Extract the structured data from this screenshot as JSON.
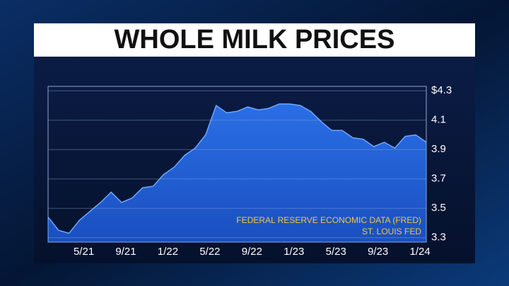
{
  "chart_data": {
    "type": "area",
    "title": "WHOLE MILK PRICES",
    "source": [
      "FEDERAL RESERVE ECONOMIC DATA (FRED)",
      "ST. LOUIS FED"
    ],
    "categories": [
      null,
      null,
      null,
      "5/21",
      null,
      null,
      null,
      "9/21",
      null,
      null,
      null,
      "1/22",
      null,
      null,
      null,
      "5/22",
      null,
      null,
      null,
      "9/22",
      null,
      null,
      null,
      "1/23",
      null,
      null,
      null,
      "5/23",
      null,
      null,
      null,
      "9/23",
      null,
      null,
      null,
      "1/24",
      null
    ],
    "values": [
      3.44,
      3.35,
      3.33,
      3.42,
      3.48,
      3.54,
      3.61,
      3.54,
      3.57,
      3.64,
      3.65,
      3.73,
      3.78,
      3.86,
      3.91,
      4.0,
      4.2,
      4.15,
      4.16,
      4.19,
      4.17,
      4.18,
      4.21,
      4.21,
      4.2,
      4.16,
      4.09,
      4.03,
      4.03,
      3.98,
      3.97,
      3.92,
      3.95,
      3.91,
      3.99,
      4.0,
      3.95
    ],
    "color": "#1c5fd6",
    "ylim": [
      3.27,
      4.33
    ],
    "yticks": [
      3.3,
      3.5,
      3.7,
      3.9,
      4.1,
      {
        "value": 4.3,
        "label": "$4.3"
      }
    ],
    "grid": true
  }
}
